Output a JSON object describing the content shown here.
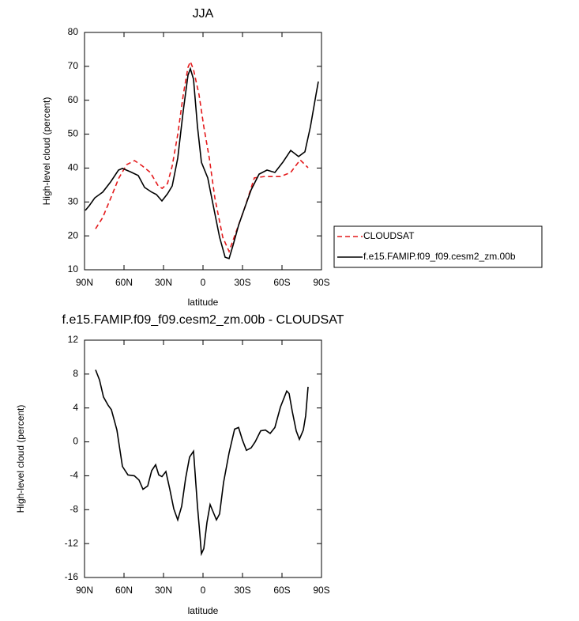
{
  "chart_data": [
    {
      "type": "line",
      "title": "JJA",
      "xlabel": "latitude",
      "ylabel": "High-level cloud (percent)",
      "xlim": [
        90,
        -90
      ],
      "xticks": [
        {
          "value": 90,
          "label": "90N"
        },
        {
          "value": 60,
          "label": "60N"
        },
        {
          "value": 30,
          "label": "30N"
        },
        0,
        {
          "value": -30,
          "label": "30S"
        },
        {
          "value": -60,
          "label": "60S"
        },
        {
          "value": -90,
          "label": "90S"
        }
      ],
      "ylim": [
        10,
        80
      ],
      "yticks": [
        10,
        20,
        30,
        40,
        50,
        60,
        70,
        80
      ],
      "legend": "right",
      "series": [
        {
          "name": "CLOUDSAT",
          "color": "#e41a1c",
          "linestyle": "dashed",
          "x": [
            81.6,
            76.2,
            70,
            64,
            58,
            52,
            46,
            40,
            34,
            31,
            27,
            23.4,
            19.2,
            15,
            11.4,
            9.6,
            7.2,
            3,
            -0.6,
            -4.8,
            -9,
            -15,
            -19.8,
            -25.8,
            -31.8,
            -39,
            -46.8,
            -58.8,
            -66.6,
            -73.8,
            -79.8
          ],
          "values": [
            22.1,
            25.4,
            31.2,
            37,
            41,
            42.2,
            40.6,
            38.7,
            34.7,
            34,
            35.4,
            40.6,
            49.9,
            61.6,
            69.7,
            71.4,
            69,
            61.6,
            52.2,
            42.9,
            31.2,
            19.6,
            15.4,
            21.9,
            28.4,
            37.1,
            37.5,
            37.5,
            38.7,
            42.4,
            40.1
          ]
        },
        {
          "name": "f.e15.FAMIP.f09_f09.cesm2_zm.00b",
          "color": "#000000",
          "linestyle": "solid",
          "x": [
            89.4,
            86.4,
            82.2,
            76.2,
            70.2,
            64.2,
            61.2,
            55.2,
            49.2,
            44.4,
            39,
            35.4,
            31.2,
            27,
            23.4,
            19.2,
            15,
            11.4,
            9.6,
            7.2,
            4.2,
            1.2,
            -3.6,
            -7.8,
            -12.6,
            -16.8,
            -19.8,
            -22.8,
            -27,
            -31.8,
            -36.6,
            -42.6,
            -48.6,
            -54.6,
            -60.6,
            -66.6,
            -72.6,
            -77.4,
            -81.6,
            -85.8,
            -87.6
          ],
          "values": [
            27.5,
            28.9,
            31.2,
            32.9,
            35.9,
            39.4,
            39.9,
            38.9,
            37.8,
            34.3,
            32.9,
            32.2,
            30.3,
            32.4,
            34.7,
            42.9,
            56.9,
            67.4,
            69.3,
            66.2,
            52.2,
            41.7,
            37.1,
            28.9,
            19.6,
            13.7,
            13.3,
            17.2,
            23.1,
            28.4,
            33.6,
            38.2,
            39.4,
            38.7,
            41.7,
            45.2,
            43.4,
            44.8,
            52.2,
            61.6,
            65.5
          ]
        }
      ]
    },
    {
      "type": "line",
      "title": "f.e15.FAMIP.f09_f09.cesm2_zm.00b - CLOUDSAT",
      "xlabel": "latitude",
      "ylabel": "High-level cloud (percent)",
      "xlim": [
        90,
        -90
      ],
      "xticks": [
        {
          "value": 90,
          "label": "90N"
        },
        {
          "value": 60,
          "label": "60N"
        },
        {
          "value": 30,
          "label": "30N"
        },
        0,
        {
          "value": -30,
          "label": "30S"
        },
        {
          "value": -60,
          "label": "60S"
        },
        {
          "value": -90,
          "label": "90S"
        }
      ],
      "ylim": [
        -16,
        12
      ],
      "yticks": [
        -16,
        -12,
        -8,
        -4,
        0,
        4,
        8,
        12
      ],
      "series": [
        {
          "color": "#000000",
          "linestyle": "solid",
          "x": [
            81.6,
            78.6,
            75.6,
            72,
            69.6,
            65.4,
            61.2,
            57,
            52.2,
            48.6,
            45.6,
            42,
            39,
            36,
            33.6,
            31.2,
            28.2,
            25.2,
            22.2,
            19.2,
            16.2,
            13.2,
            10.2,
            7.2,
            4.2,
            2.4,
            1.2,
            -0.6,
            -3,
            -5.4,
            -7.8,
            -10.2,
            -12.6,
            -15.6,
            -19.8,
            -24,
            -27,
            -30,
            -33,
            -36.6,
            -39.6,
            -43.8,
            -47.4,
            -51,
            -54.6,
            -58.8,
            -63.6,
            -65.4,
            -67.8,
            -70.8,
            -73.2,
            -76.2,
            -78,
            -79.8
          ],
          "values": [
            8.5,
            7.3,
            5.3,
            4.3,
            3.8,
            1.4,
            -2.9,
            -3.9,
            -4,
            -4.5,
            -5.6,
            -5.2,
            -3.4,
            -2.7,
            -3.9,
            -4.1,
            -3.5,
            -5.6,
            -7.9,
            -9.2,
            -7.6,
            -4.3,
            -1.8,
            -1.1,
            -7.6,
            -10.9,
            -13.2,
            -12.6,
            -9.5,
            -7.4,
            -8.3,
            -9.2,
            -8.5,
            -4.8,
            -1.3,
            1.5,
            1.7,
            0.2,
            -1,
            -0.7,
            0,
            1.3,
            1.4,
            1,
            1.7,
            4.1,
            6,
            5.7,
            3.6,
            1.3,
            0.3,
            1.4,
            3.1,
            6.5
          ]
        }
      ]
    }
  ]
}
